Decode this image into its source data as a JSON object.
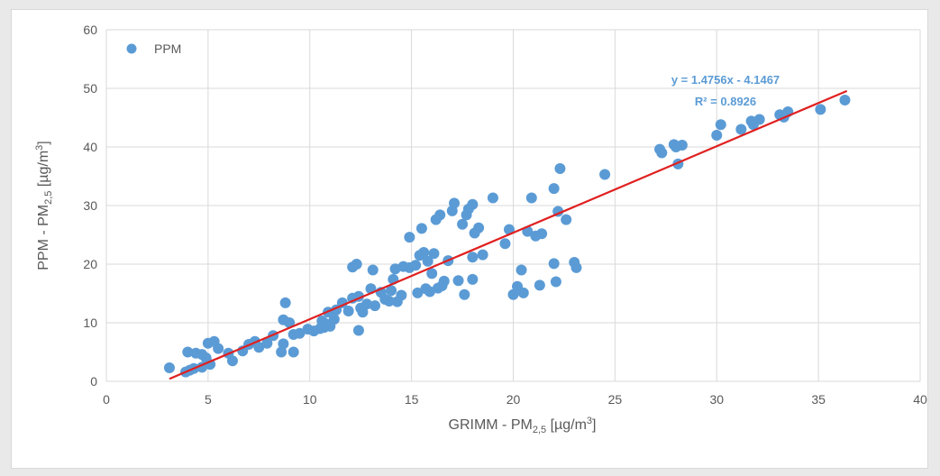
{
  "chart_data": {
    "type": "scatter",
    "xlabel": {
      "main": "GRIMM - PM",
      "sub": "2,5",
      "unit": " [µg/m",
      "sup": "3",
      "end": "]"
    },
    "ylabel": {
      "main": "PPM - PM",
      "sub": "2,5",
      "unit": " [µg/m",
      "sup": "3",
      "end": "]"
    },
    "xlim": [
      0,
      40
    ],
    "ylim": [
      0,
      60
    ],
    "xticks": [
      0,
      5,
      10,
      15,
      20,
      25,
      30,
      35,
      40
    ],
    "yticks": [
      0,
      10,
      20,
      30,
      40,
      50,
      60
    ],
    "xtick_labels": [
      "0",
      "5",
      "10",
      "15",
      "20",
      "25",
      "30",
      "35",
      "40"
    ],
    "ytick_labels": [
      "0",
      "10",
      "20",
      "30",
      "40",
      "50",
      "60"
    ],
    "grid": true,
    "legend_position": "top-left",
    "series": [
      {
        "name": "PPM",
        "color": "#5b9bd5",
        "points": [
          [
            3.1,
            2.3
          ],
          [
            3.9,
            1.6
          ],
          [
            4.1,
            1.9
          ],
          [
            4.3,
            2.2
          ],
          [
            4.7,
            2.4
          ],
          [
            5.1,
            2.9
          ],
          [
            4.0,
            5.0
          ],
          [
            4.4,
            4.8
          ],
          [
            4.7,
            4.6
          ],
          [
            4.9,
            4.0
          ],
          [
            5.0,
            6.5
          ],
          [
            5.3,
            6.8
          ],
          [
            5.5,
            5.6
          ],
          [
            6.0,
            4.8
          ],
          [
            6.2,
            3.5
          ],
          [
            6.7,
            5.2
          ],
          [
            7.0,
            6.3
          ],
          [
            7.3,
            6.8
          ],
          [
            7.5,
            5.8
          ],
          [
            7.9,
            6.5
          ],
          [
            8.2,
            7.8
          ],
          [
            8.6,
            5.0
          ],
          [
            8.7,
            6.4
          ],
          [
            8.7,
            10.5
          ],
          [
            8.8,
            13.4
          ],
          [
            9.0,
            10.0
          ],
          [
            9.2,
            8.0
          ],
          [
            9.2,
            5.0
          ],
          [
            9.5,
            8.2
          ],
          [
            9.9,
            8.9
          ],
          [
            10.2,
            8.6
          ],
          [
            10.5,
            9.0
          ],
          [
            10.6,
            10.3
          ],
          [
            10.7,
            9.2
          ],
          [
            10.8,
            9.8
          ],
          [
            10.9,
            11.8
          ],
          [
            11.0,
            9.4
          ],
          [
            11.2,
            10.6
          ],
          [
            11.3,
            12.2
          ],
          [
            11.6,
            13.4
          ],
          [
            11.9,
            12.0
          ],
          [
            12.1,
            14.2
          ],
          [
            12.1,
            19.5
          ],
          [
            12.3,
            20.0
          ],
          [
            12.4,
            8.7
          ],
          [
            12.4,
            14.5
          ],
          [
            12.5,
            12.5
          ],
          [
            12.6,
            11.8
          ],
          [
            12.8,
            13.2
          ],
          [
            13.0,
            15.8
          ],
          [
            13.1,
            19.0
          ],
          [
            13.2,
            12.9
          ],
          [
            13.5,
            15.2
          ],
          [
            13.7,
            14.0
          ],
          [
            13.9,
            13.7
          ],
          [
            14.0,
            15.5
          ],
          [
            14.1,
            17.4
          ],
          [
            14.2,
            19.2
          ],
          [
            14.3,
            13.6
          ],
          [
            14.5,
            14.7
          ],
          [
            14.6,
            19.6
          ],
          [
            14.9,
            24.6
          ],
          [
            14.9,
            19.4
          ],
          [
            15.2,
            19.8
          ],
          [
            15.3,
            15.1
          ],
          [
            15.4,
            21.5
          ],
          [
            15.5,
            26.1
          ],
          [
            15.6,
            22.0
          ],
          [
            15.7,
            15.8
          ],
          [
            15.8,
            20.5
          ],
          [
            15.9,
            15.3
          ],
          [
            16.0,
            18.4
          ],
          [
            16.1,
            21.8
          ],
          [
            16.2,
            27.6
          ],
          [
            16.3,
            15.9
          ],
          [
            16.4,
            28.4
          ],
          [
            16.5,
            16.3
          ],
          [
            16.6,
            17.1
          ],
          [
            16.8,
            20.6
          ],
          [
            17.0,
            29.1
          ],
          [
            17.1,
            30.4
          ],
          [
            17.3,
            17.2
          ],
          [
            17.5,
            26.8
          ],
          [
            17.6,
            14.8
          ],
          [
            17.7,
            28.4
          ],
          [
            17.8,
            29.4
          ],
          [
            18.0,
            30.2
          ],
          [
            18.0,
            21.2
          ],
          [
            18.1,
            25.3
          ],
          [
            18.3,
            26.2
          ],
          [
            18.5,
            21.6
          ],
          [
            18.0,
            17.4
          ],
          [
            19.0,
            31.3
          ],
          [
            19.6,
            23.5
          ],
          [
            19.8,
            25.9
          ],
          [
            20.0,
            14.8
          ],
          [
            20.2,
            16.2
          ],
          [
            20.4,
            19.0
          ],
          [
            20.5,
            15.1
          ],
          [
            20.7,
            25.6
          ],
          [
            20.9,
            31.3
          ],
          [
            21.1,
            24.8
          ],
          [
            21.3,
            16.4
          ],
          [
            21.4,
            25.2
          ],
          [
            22.0,
            20.1
          ],
          [
            22.0,
            32.9
          ],
          [
            22.1,
            17.0
          ],
          [
            22.2,
            29.0
          ],
          [
            22.3,
            36.3
          ],
          [
            22.6,
            27.6
          ],
          [
            23.0,
            20.3
          ],
          [
            23.1,
            19.4
          ],
          [
            24.5,
            35.3
          ],
          [
            27.2,
            39.6
          ],
          [
            27.3,
            39.0
          ],
          [
            27.9,
            40.4
          ],
          [
            28.0,
            40.0
          ],
          [
            28.1,
            37.1
          ],
          [
            28.3,
            40.3
          ],
          [
            30.0,
            42.0
          ],
          [
            30.2,
            43.8
          ],
          [
            31.2,
            43.0
          ],
          [
            31.7,
            44.4
          ],
          [
            31.8,
            43.8
          ],
          [
            32.1,
            44.7
          ],
          [
            33.1,
            45.5
          ],
          [
            33.3,
            45.1
          ],
          [
            33.5,
            46.0
          ],
          [
            35.1,
            46.4
          ],
          [
            36.3,
            48.0
          ]
        ]
      }
    ],
    "trendline": {
      "slope": 1.4756,
      "intercept": -4.1467,
      "x_range": [
        3.1,
        36.4
      ],
      "color": "#e02020",
      "equation": "y = 1.4756x - 4.1467",
      "r_squared": "R² = 0.8926"
    }
  }
}
